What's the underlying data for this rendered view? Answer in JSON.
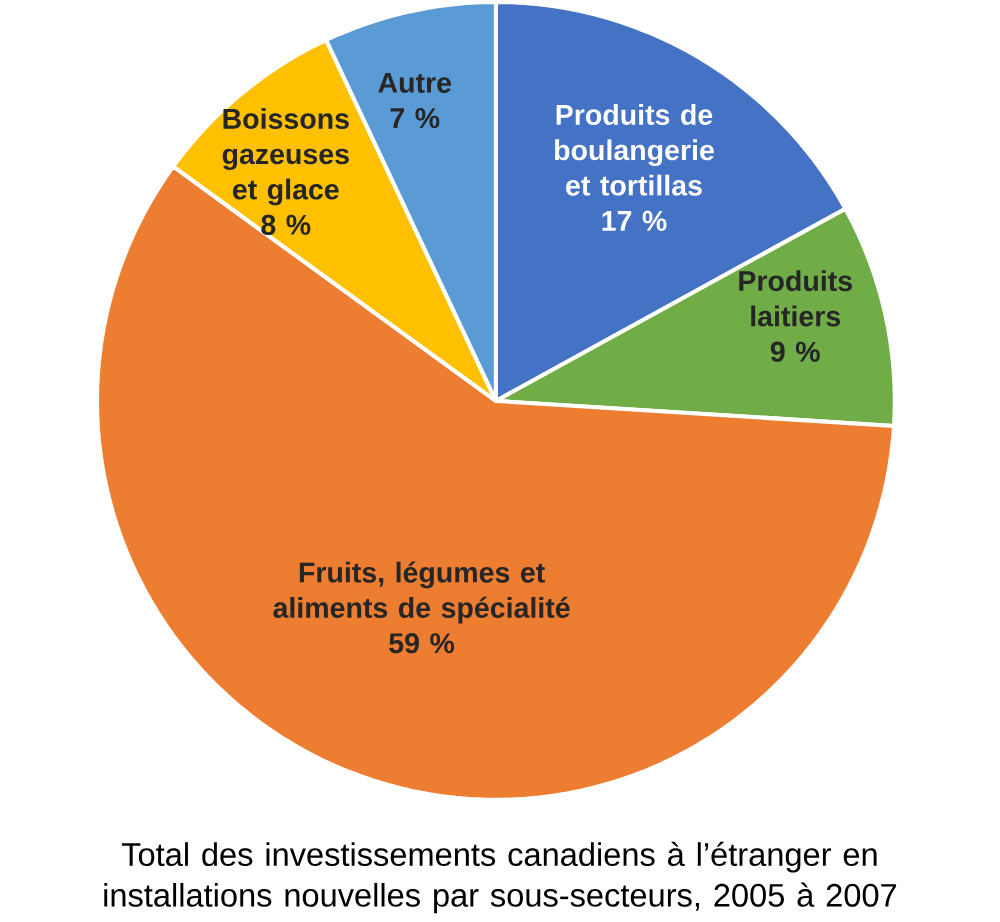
{
  "chart_data": {
    "type": "pie",
    "title": "Total des investissements canadiens à l’étranger en installations nouvelles par sous-secteurs, 2005 à 2007",
    "categories": [
      "Produits de boulangerie et tortillas",
      "Produits laitiers",
      "Fruits, légumes et aliments de spécialité",
      "Boissons gazeuses et glace",
      "Autre"
    ],
    "values": [
      17,
      9,
      59,
      8,
      7
    ],
    "value_labels": [
      "17 %",
      "9 %",
      "59 %",
      "8 %",
      "7 %"
    ],
    "colors": [
      "#4472c4",
      "#70ad47",
      "#ed7d31",
      "#ffc000",
      "#5b9bd5"
    ]
  }
}
